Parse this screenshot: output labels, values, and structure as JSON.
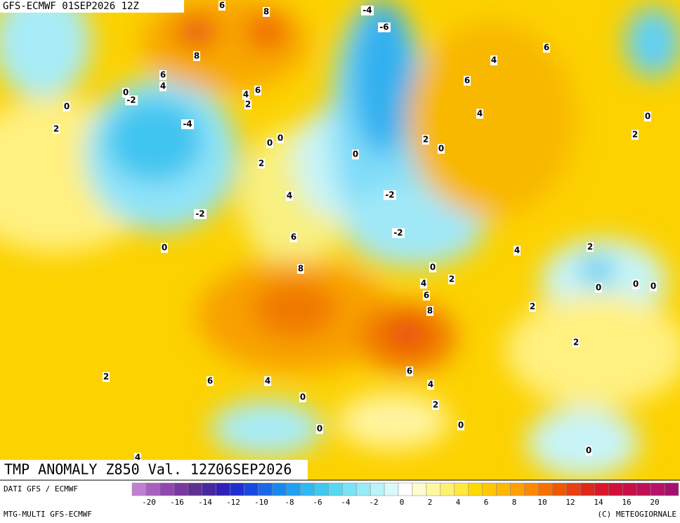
{
  "header": {
    "run": "GFS-ECMWF 01SEP2026 12Z"
  },
  "map": {
    "title": "TMP ANOMALY Z850 Val. 12Z06SEP2026",
    "contour_labels": [
      6,
      8,
      -4,
      -6,
      8,
      6,
      4,
      4,
      6,
      2,
      0,
      -2,
      0,
      -4,
      2,
      0,
      0,
      2,
      4,
      6,
      6,
      4,
      0,
      2,
      2,
      0,
      0,
      -2,
      4,
      -2,
      -2,
      6,
      0,
      4,
      2,
      8,
      0,
      2,
      4,
      6,
      0,
      0,
      0,
      8,
      2,
      2,
      6,
      2,
      6,
      4,
      4,
      0,
      2,
      0,
      0,
      0,
      4
    ]
  },
  "footer": {
    "source": "DATI GFS / ECMWF",
    "model": "MTG-MULTI GFS-ECMWF",
    "copyright": "(C) METEOGIORNALE",
    "colorbar_labels": [
      "-20",
      "-16",
      "-14",
      "-12",
      "-10",
      "-8",
      "-6",
      "-4",
      "-2",
      "0",
      "2",
      "4",
      "6",
      "8",
      "10",
      "12",
      "14",
      "16",
      "20"
    ],
    "colorbar_colors": [
      "#c080d0",
      "#a860c0",
      "#9048b0",
      "#7838a0",
      "#603090",
      "#4828a0",
      "#3020b8",
      "#2030d0",
      "#1848e0",
      "#1868e8",
      "#1888f0",
      "#20a0f0",
      "#30b8f0",
      "#40c8f0",
      "#58d8f0",
      "#78e4f4",
      "#98ecf6",
      "#b8f4f8",
      "#d8fafa",
      "#ffffff",
      "#fffcd0",
      "#fff8a0",
      "#fff070",
      "#ffe840",
      "#ffd800",
      "#ffc800",
      "#ffb800",
      "#ffa000",
      "#ff8800",
      "#f87000",
      "#f05800",
      "#e84010",
      "#e02818",
      "#d81828",
      "#d01038",
      "#c81048",
      "#c01058",
      "#b81068",
      "#a81070"
    ]
  }
}
